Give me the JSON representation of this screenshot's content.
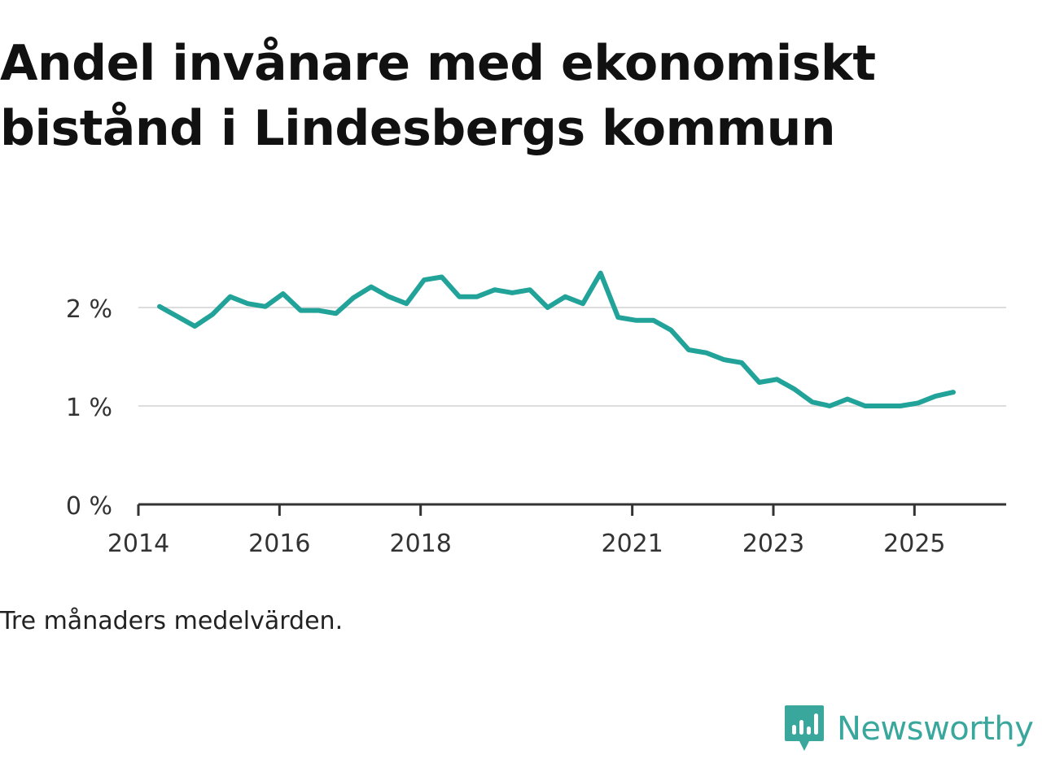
{
  "title": "Andel invånare med ekonomiskt bistånd i Lindesbergs kommun",
  "caption": "Tre månaders medelvärden.",
  "brand": {
    "name": "Newsworthy"
  },
  "colors": {
    "line": "#22a39a",
    "grid": "#dddddd",
    "axis": "#333333",
    "brand": "#3aa79d"
  },
  "chart_data": {
    "type": "line",
    "title": "Andel invånare med ekonomiskt bistånd i Lindesbergs kommun",
    "xlabel": "",
    "ylabel": "",
    "ylim": [
      0,
      2.5
    ],
    "xlim": [
      2014.0,
      2026.3
    ],
    "yticks": [
      {
        "value": 0,
        "label": "0 %"
      },
      {
        "value": 1,
        "label": "1 %"
      },
      {
        "value": 2,
        "label": "2 %"
      }
    ],
    "xticks": [
      {
        "value": 2014,
        "label": "2014"
      },
      {
        "value": 2016,
        "label": "2016"
      },
      {
        "value": 2018,
        "label": "2018"
      },
      {
        "value": 2021,
        "label": "2021"
      },
      {
        "value": 2023,
        "label": "2023"
      },
      {
        "value": 2025,
        "label": "2025"
      }
    ],
    "grid": true,
    "series": [
      {
        "name": "Andel",
        "x": [
          2014.3,
          2014.55,
          2014.8,
          2015.05,
          2015.3,
          2015.55,
          2015.8,
          2016.05,
          2016.3,
          2016.55,
          2016.8,
          2017.05,
          2017.3,
          2017.55,
          2017.8,
          2018.05,
          2018.3,
          2018.55,
          2018.8,
          2019.05,
          2019.3,
          2019.55,
          2019.8,
          2020.05,
          2020.3,
          2020.55,
          2020.8,
          2021.05,
          2021.3,
          2021.55,
          2021.8,
          2022.05,
          2022.3,
          2022.55,
          2022.8,
          2023.05,
          2023.3,
          2023.55,
          2023.8,
          2024.05,
          2024.3,
          2024.55,
          2024.8,
          2025.05,
          2025.3,
          2025.55
        ],
        "values": [
          2.01,
          1.91,
          1.81,
          1.93,
          2.11,
          2.04,
          2.01,
          2.14,
          1.97,
          1.97,
          1.94,
          2.1,
          2.21,
          2.11,
          2.04,
          2.28,
          2.31,
          2.11,
          2.11,
          2.18,
          2.15,
          2.18,
          2.0,
          2.11,
          2.04,
          2.35,
          1.9,
          1.87,
          1.87,
          1.77,
          1.57,
          1.54,
          1.47,
          1.44,
          1.24,
          1.27,
          1.17,
          1.04,
          1.0,
          1.07,
          1.0,
          1.0,
          1.0,
          1.03,
          1.1,
          1.14
        ]
      }
    ]
  }
}
